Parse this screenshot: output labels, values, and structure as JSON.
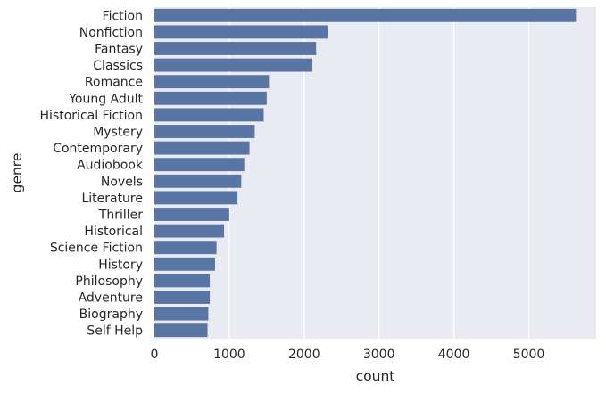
{
  "chart_data": {
    "type": "bar",
    "orientation": "horizontal",
    "categories": [
      "Fiction",
      "Nonfiction",
      "Fantasy",
      "Classics",
      "Romance",
      "Young Adult",
      "Historical Fiction",
      "Mystery",
      "Contemporary",
      "Audiobook",
      "Novels",
      "Literature",
      "Thriller",
      "Historical",
      "Science Fiction",
      "History",
      "Philosophy",
      "Adventure",
      "Biography",
      "Self Help"
    ],
    "values": [
      5630,
      2320,
      2160,
      2110,
      1530,
      1500,
      1460,
      1340,
      1270,
      1200,
      1160,
      1110,
      1000,
      930,
      830,
      810,
      740,
      740,
      720,
      710
    ],
    "xlabel": "count",
    "ylabel": "genre",
    "xlim": [
      0,
      5900
    ],
    "xticks": [
      0,
      1000,
      2000,
      3000,
      4000,
      5000
    ],
    "grid": true,
    "colors": {
      "bar": "#5975a4",
      "plot_background": "#eaeaf2",
      "grid": "#ffffff",
      "text": "#262626"
    }
  }
}
